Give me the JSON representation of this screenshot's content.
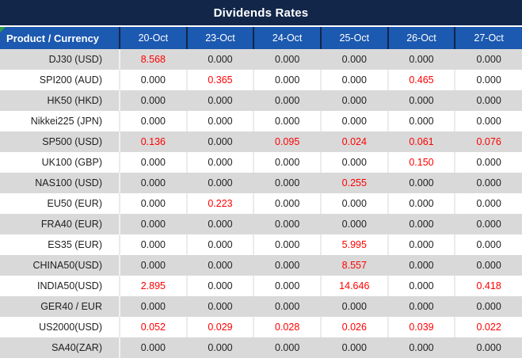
{
  "title": "Dividends Rates",
  "colors": {
    "title_bg": "#12264A",
    "header_bg": "#1C59B0",
    "header_separator": "#12264A",
    "band_gray": "#D9D9D9",
    "band_white": "#FFFFFF",
    "text": "#1F1F1F",
    "value_red": "#FF0000",
    "error_indicator_green": "#2F9E44"
  },
  "chart_data": {
    "type": "table",
    "title": "Dividends Rates",
    "columns": [
      "Product / Currency",
      "20-Oct",
      "23-Oct",
      "24-Oct",
      "25-Oct",
      "26-Oct",
      "27-Oct"
    ],
    "rows": [
      {
        "product": "DJ30 (USD)",
        "values": [
          "8.568",
          "0.000",
          "0.000",
          "0.000",
          "0.000",
          "0.000"
        ],
        "red_flags": [
          true,
          false,
          false,
          false,
          false,
          false
        ]
      },
      {
        "product": "SPI200 (AUD)",
        "values": [
          "0.000",
          "0.365",
          "0.000",
          "0.000",
          "0.465",
          "0.000"
        ],
        "red_flags": [
          false,
          true,
          false,
          false,
          true,
          false
        ]
      },
      {
        "product": "HK50 (HKD)",
        "values": [
          "0.000",
          "0.000",
          "0.000",
          "0.000",
          "0.000",
          "0.000"
        ],
        "red_flags": [
          false,
          false,
          false,
          false,
          false,
          false
        ]
      },
      {
        "product": "Nikkei225 (JPN)",
        "values": [
          "0.000",
          "0.000",
          "0.000",
          "0.000",
          "0.000",
          "0.000"
        ],
        "red_flags": [
          false,
          false,
          false,
          false,
          false,
          false
        ]
      },
      {
        "product": "SP500 (USD)",
        "values": [
          "0.136",
          "0.000",
          "0.095",
          "0.024",
          "0.061",
          "0.076"
        ],
        "red_flags": [
          true,
          false,
          true,
          true,
          true,
          true
        ]
      },
      {
        "product": "UK100 (GBP)",
        "values": [
          "0.000",
          "0.000",
          "0.000",
          "0.000",
          "0.150",
          "0.000"
        ],
        "red_flags": [
          false,
          false,
          false,
          false,
          true,
          false
        ]
      },
      {
        "product": "NAS100 (USD)",
        "values": [
          "0.000",
          "0.000",
          "0.000",
          "0.255",
          "0.000",
          "0.000"
        ],
        "red_flags": [
          false,
          false,
          false,
          true,
          false,
          false
        ]
      },
      {
        "product": "EU50 (EUR)",
        "values": [
          "0.000",
          "0.223",
          "0.000",
          "0.000",
          "0.000",
          "0.000"
        ],
        "red_flags": [
          false,
          true,
          false,
          false,
          false,
          false
        ]
      },
      {
        "product": "FRA40 (EUR)",
        "values": [
          "0.000",
          "0.000",
          "0.000",
          "0.000",
          "0.000",
          "0.000"
        ],
        "red_flags": [
          false,
          false,
          false,
          false,
          false,
          false
        ]
      },
      {
        "product": "ES35 (EUR)",
        "values": [
          "0.000",
          "0.000",
          "0.000",
          "5.995",
          "0.000",
          "0.000"
        ],
        "red_flags": [
          false,
          false,
          false,
          true,
          false,
          false
        ]
      },
      {
        "product": "CHINA50(USD)",
        "values": [
          "0.000",
          "0.000",
          "0.000",
          "8.557",
          "0.000",
          "0.000"
        ],
        "red_flags": [
          false,
          false,
          false,
          true,
          false,
          false
        ]
      },
      {
        "product": "INDIA50(USD)",
        "values": [
          "2.895",
          "0.000",
          "0.000",
          "14.646",
          "0.000",
          "0.418"
        ],
        "red_flags": [
          true,
          false,
          false,
          true,
          false,
          true
        ]
      },
      {
        "product": "GER40 / EUR",
        "values": [
          "0.000",
          "0.000",
          "0.000",
          "0.000",
          "0.000",
          "0.000"
        ],
        "red_flags": [
          false,
          false,
          false,
          false,
          false,
          false
        ]
      },
      {
        "product": "US2000(USD)",
        "values": [
          "0.052",
          "0.029",
          "0.028",
          "0.026",
          "0.039",
          "0.022"
        ],
        "red_flags": [
          true,
          true,
          true,
          true,
          true,
          true
        ]
      },
      {
        "product": "SA40(ZAR)",
        "values": [
          "0.000",
          "0.000",
          "0.000",
          "0.000",
          "0.000",
          "0.000"
        ],
        "red_flags": [
          false,
          false,
          false,
          false,
          false,
          false
        ]
      }
    ]
  }
}
